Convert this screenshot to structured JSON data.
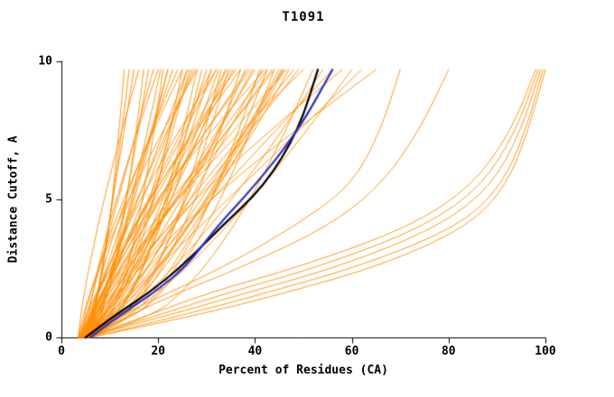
{
  "chart_data": {
    "type": "line",
    "title": "T1091",
    "xlabel": "Percent of Residues (CA)",
    "ylabel": "Distance Cutoff, A",
    "xlim": [
      0,
      100
    ],
    "ylim": [
      0,
      10
    ],
    "xticks": [
      0,
      20,
      40,
      60,
      80,
      100
    ],
    "yticks": [
      0,
      5,
      10
    ],
    "grid": "off",
    "legend": "none",
    "colors": {
      "models": "#ff8c00",
      "highlight_black": "#000000",
      "highlight_blue": "#3030c0",
      "axis": "#000000"
    },
    "y_grid": [
      0,
      0.8,
      1.6,
      2.6,
      4,
      5.5,
      7.5,
      9.7
    ],
    "orange_x": [
      [
        4,
        6.6,
        7.7,
        8.7,
        9.8,
        10.8,
        11.9,
        13
      ],
      [
        5,
        6.6,
        7.6,
        8.6,
        9.8,
        11,
        12.5,
        14
      ],
      [
        6,
        6.7,
        7.5,
        8.4,
        9.7,
        11.1,
        13,
        15
      ],
      [
        3.5,
        4,
        4.7,
        5.8,
        7.5,
        9.5,
        12.5,
        16
      ],
      [
        4.5,
        8.1,
        9.6,
        11,
        12.5,
        13.9,
        15.5,
        17
      ],
      [
        5.5,
        7.7,
        9.1,
        10.5,
        12.2,
        13.9,
        15.9,
        18
      ],
      [
        4,
        5.2,
        6.5,
        8,
        10.2,
        12.5,
        15.6,
        19
      ],
      [
        5,
        5.6,
        6.4,
        7.7,
        9.7,
        12.2,
        15.7,
        20
      ],
      [
        6,
        10.3,
        12.1,
        13.8,
        15.6,
        17.3,
        19.2,
        21
      ],
      [
        3.5,
        6.7,
        8.8,
        10.9,
        13.4,
        15.9,
        18.9,
        22
      ],
      [
        4.5,
        6,
        7.6,
        9.5,
        12.1,
        15,
        18.8,
        23
      ],
      [
        5.5,
        6.2,
        7.3,
        8.8,
        11.3,
        14.3,
        18.7,
        24
      ],
      [
        4,
        10,
        12.5,
        14.9,
        17.5,
        19.8,
        22.5,
        25
      ],
      [
        5,
        8.7,
        11,
        13.4,
        16.3,
        19.1,
        22.5,
        26
      ],
      [
        6,
        7.7,
        9.5,
        11.6,
        14.7,
        17.9,
        22.2,
        27
      ],
      [
        3.5,
        4.5,
        5.9,
        7.9,
        11.2,
        15.2,
        21,
        28
      ],
      [
        4.5,
        11.5,
        14.4,
        17.2,
        20.2,
        22.9,
        26,
        29
      ],
      [
        5.5,
        9.8,
        12.5,
        15.3,
        18.7,
        22,
        26,
        30
      ],
      [
        4,
        6.2,
        8.5,
        11.2,
        15.1,
        19.3,
        24.9,
        31
      ],
      [
        5,
        6.1,
        7.6,
        9.9,
        13.5,
        17.9,
        24.3,
        32
      ],
      [
        6,
        13.7,
        17,
        20,
        23.3,
        26.3,
        29.7,
        33
      ],
      [
        3.5,
        8.8,
        12.2,
        15.6,
        19.9,
        24,
        29,
        34
      ],
      [
        4.5,
        7,
        9.5,
        12.7,
        17.1,
        21.8,
        28.1,
        35
      ],
      [
        5.5,
        6.7,
        8.4,
        11,
        15.1,
        20.1,
        27.3,
        36
      ],
      [
        4,
        13.4,
        17.4,
        21.1,
        25.2,
        28.8,
        33,
        37
      ],
      [
        5,
        10.7,
        14.4,
        18.1,
        22.7,
        27.2,
        32.6,
        38
      ],
      [
        6,
        8.8,
        11.6,
        15.1,
        20,
        25.3,
        32.3,
        40
      ],
      [
        3.5,
        5,
        7.2,
        10.5,
        15.7,
        21.9,
        31.1,
        42
      ],
      [
        4.5,
        15.8,
        20.5,
        25,
        29.9,
        34.2,
        39.2,
        44
      ],
      [
        5.5,
        12.5,
        17,
        21.6,
        27.2,
        32.7,
        39.3,
        46
      ],
      [
        4,
        7.6,
        11.3,
        15.8,
        22.1,
        28.9,
        38,
        48
      ],
      [
        5,
        6.8,
        9.3,
        13.1,
        19.2,
        26.5,
        37.2,
        50
      ],
      [
        6,
        19.2,
        24.7,
        29.8,
        35.5,
        40.6,
        46.4,
        52
      ],
      [
        3.5,
        12.3,
        17.8,
        23.6,
        30.6,
        37.4,
        45.7,
        54
      ],
      [
        4.5,
        8.7,
        13,
        18.3,
        25.7,
        33.7,
        44.3,
        56
      ],
      [
        5.5,
        7.5,
        10.5,
        15,
        22.1,
        30.6,
        43.1,
        58
      ],
      [
        4,
        13.7,
        19.9,
        26.3,
        34.1,
        41.6,
        50.8,
        60
      ],
      [
        5,
        9.7,
        14.4,
        20.3,
        28.5,
        37.3,
        49.1,
        62
      ],
      [
        6,
        8.3,
        11.7,
        16.7,
        24.6,
        34.2,
        48.2,
        65
      ],
      [
        7,
        8.2,
        9.5,
        11,
        13.2,
        15.5,
        18.6,
        22
      ],
      [
        4,
        4.8,
        6,
        7.8,
        10.6,
        14,
        19,
        25
      ],
      [
        5,
        11.6,
        14.3,
        16.9,
        19.8,
        22.3,
        25.2,
        28
      ],
      [
        6,
        10.4,
        13.1,
        16,
        19.4,
        22.8,
        26.9,
        31
      ],
      [
        3.5,
        6,
        8.5,
        11.7,
        16.1,
        20.8,
        27.1,
        34
      ],
      [
        4.5,
        5.8,
        7.6,
        10.4,
        14.8,
        20,
        27.8,
        37
      ],
      [
        5.5,
        15.7,
        19.9,
        23.9,
        28.3,
        32.2,
        36.7,
        41
      ],
      [
        4,
        11.1,
        15.6,
        20.3,
        26,
        31.6,
        38.2,
        45
      ],
      [
        5,
        6.7,
        8.5,
        10.6,
        13.7,
        16.9,
        21.2,
        26
      ],
      [
        4.2,
        7.4,
        9,
        10.8,
        13,
        15.2,
        17.8,
        20.5
      ],
      [
        5.2,
        9.4,
        11.8,
        14.2,
        17,
        19.8,
        23,
        26.5
      ],
      [
        3.8,
        5.5,
        7.4,
        9.8,
        13.2,
        16.9,
        21.9,
        27.5
      ],
      [
        6.2,
        11.2,
        14,
        17,
        20.4,
        23.8,
        28,
        32.5
      ],
      [
        4.8,
        6.5,
        8.6,
        11.3,
        15.3,
        19.7,
        25.6,
        32
      ],
      [
        5.8,
        13,
        16.4,
        19.7,
        23.4,
        26.8,
        30.8,
        34.5
      ],
      [
        4.1,
        7.9,
        11,
        14.4,
        18.8,
        23.3,
        28.9,
        35.5
      ],
      [
        5.4,
        7,
        9.2,
        12.3,
        17,
        22.4,
        29.9,
        38.5
      ],
      [
        3.6,
        9.9,
        13.9,
        18,
        23.2,
        28.3,
        34.6,
        41.5
      ],
      [
        4.9,
        8.2,
        12,
        16.6,
        23,
        29.9,
        39.1,
        49
      ],
      [
        5.6,
        10.9,
        15.3,
        20.1,
        26.2,
        32.3,
        40,
        47
      ],
      [
        4.4,
        6.3,
        8.9,
        12.6,
        18.2,
        24.9,
        34.4,
        44
      ],
      [
        6.4,
        14.6,
        18.9,
        23.1,
        27.9,
        32.3,
        37.6,
        42.5
      ],
      [
        3.9,
        5.9,
        8.2,
        11.5,
        16.4,
        22,
        30,
        39
      ],
      [
        5.1,
        12.1,
        16.2,
        20.6,
        26.3,
        31.9,
        38.8,
        45.5
      ],
      [
        4.6,
        9.1,
        12.6,
        16.4,
        21.4,
        26.4,
        32.7,
        39.5
      ],
      [
        5.9,
        8,
        10.7,
        14.3,
        19.6,
        25.4,
        33.3,
        42.5
      ],
      [
        4.3,
        10.5,
        14.7,
        19.2,
        25,
        30.8,
        38,
        45.8
      ],
      [
        5.3,
        7.2,
        9.8,
        13.6,
        19.3,
        26,
        35.6,
        46.5
      ],
      [
        3.7,
        6.8,
        10,
        14.1,
        19.9,
        26.1,
        34.3,
        43.5
      ],
      [
        5,
        22,
        38,
        58,
        78,
        89,
        95,
        99
      ],
      [
        6,
        25,
        42,
        62,
        82,
        91,
        96,
        99.5
      ],
      [
        5,
        20,
        34,
        54,
        75,
        87,
        94,
        98.5
      ],
      [
        6,
        28,
        46,
        66,
        84,
        92,
        96.5,
        100
      ],
      [
        5,
        18,
        30,
        50,
        72,
        85,
        93,
        98
      ],
      [
        5,
        14,
        24,
        38,
        55,
        66,
        74,
        80
      ],
      [
        5,
        12,
        22,
        34,
        48,
        60,
        66,
        70
      ]
    ],
    "black_x": [
      5,
      11,
      18,
      25,
      33,
      42,
      49,
      53
    ],
    "blue_x": [
      6,
      12,
      19,
      26,
      32,
      40,
      49,
      56
    ]
  }
}
